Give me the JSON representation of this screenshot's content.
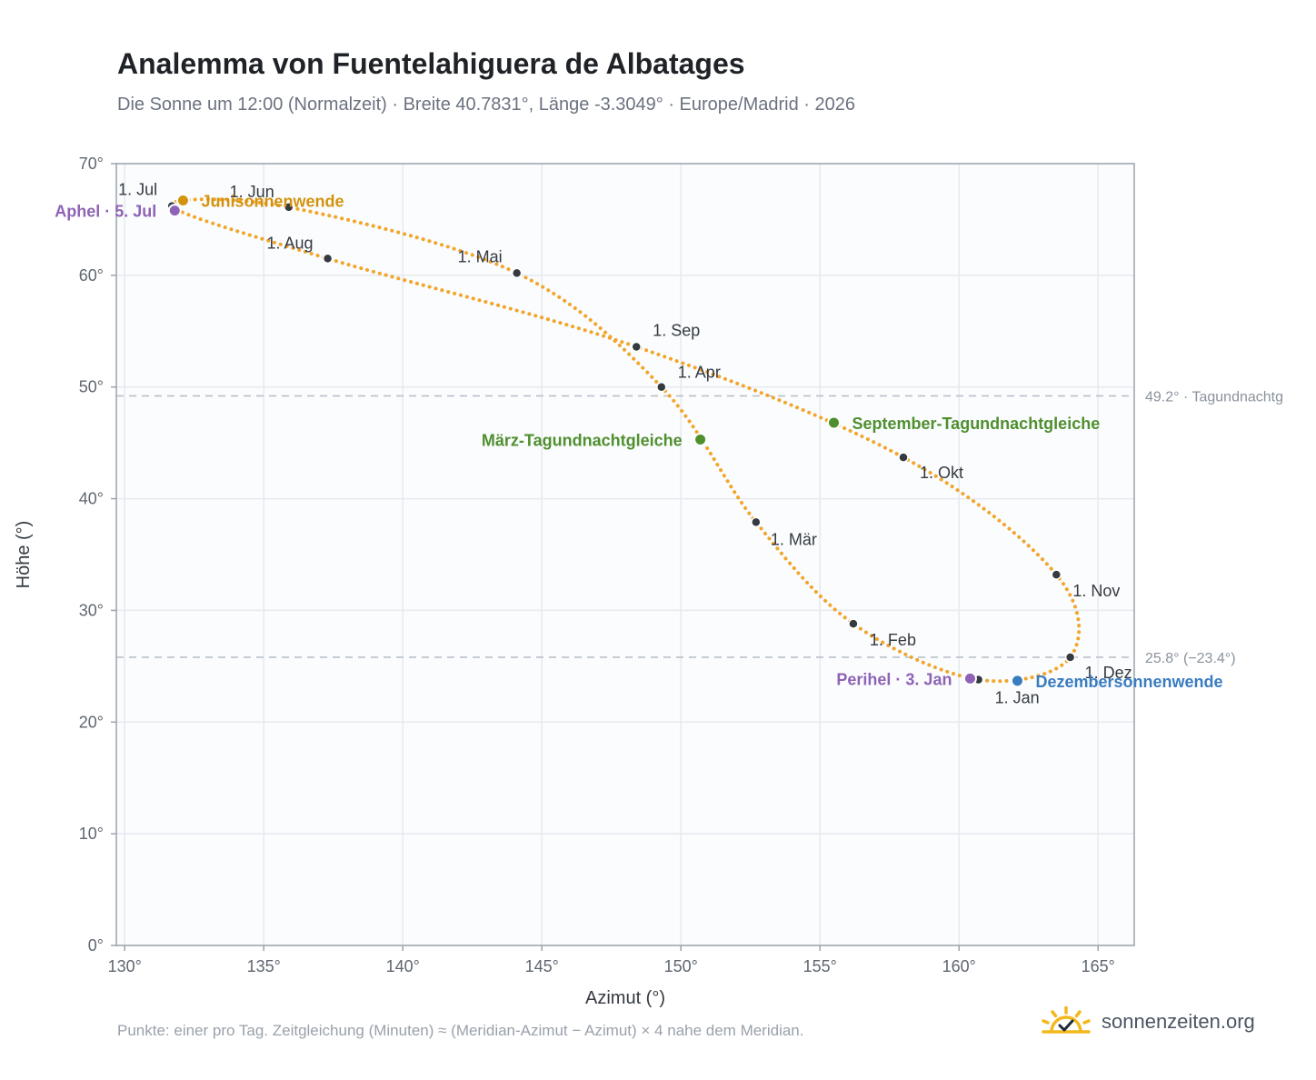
{
  "header": {
    "title": "Analemma von Fuentelahiguera de Albatages",
    "subtitle": "Die Sonne um 12:00 (Normalzeit) · Breite 40.7831°, Länge -3.3049° · Europe/Madrid · 2026"
  },
  "footer": {
    "note": "Punkte: einer pro Tag. Zeitgleichung (Minuten) ≈ (Meridian-Azimut − Azimut) × 4 nahe dem Meridian.",
    "brand": "sonnenzeiten.org",
    "brand_icon": "sun-check-icon"
  },
  "colors": {
    "curve": "#f2a52a",
    "month_dot": "#343a40",
    "equinox": "#4f8f2e",
    "june_solstice": "#d4920f",
    "december_solstice": "#3a7cc0",
    "apsis": "#8e63b5",
    "grid": "#e6e9ee",
    "plot_bg": "#fafcfe",
    "axis": "#9aa3ad"
  },
  "chart_data": {
    "type": "scatter",
    "xlabel": "Azimut (°)",
    "ylabel": "Höhe (°)",
    "xlim": [
      129.7,
      166.3
    ],
    "ylim": [
      0,
      70
    ],
    "xticks": [
      130,
      135,
      140,
      145,
      150,
      155,
      160,
      165
    ],
    "yticks": [
      0,
      10,
      20,
      30,
      40,
      50,
      60,
      70
    ],
    "xtick_labels": [
      "130°",
      "135°",
      "140°",
      "145°",
      "150°",
      "155°",
      "160°",
      "165°"
    ],
    "ytick_labels": [
      "0°",
      "10°",
      "20°",
      "30°",
      "40°",
      "50°",
      "60°",
      "70°"
    ],
    "grid": true,
    "reference_lines": [
      {
        "y": 49.2,
        "label": "49.2° · Tagundnachtg"
      },
      {
        "y": 25.8,
        "label": "25.8° (−23.4°)"
      }
    ],
    "month_points": [
      {
        "label": "1. Jan",
        "x": 160.7,
        "y": 23.8
      },
      {
        "label": "1. Feb",
        "x": 156.2,
        "y": 28.8
      },
      {
        "label": "1. Mär",
        "x": 152.7,
        "y": 37.9
      },
      {
        "label": "1. Apr",
        "x": 149.3,
        "y": 50.0
      },
      {
        "label": "1. Mai",
        "x": 144.1,
        "y": 60.2
      },
      {
        "label": "1. Jun",
        "x": 135.9,
        "y": 66.1
      },
      {
        "label": "1. Jul",
        "x": 131.7,
        "y": 66.2
      },
      {
        "label": "1. Aug",
        "x": 137.3,
        "y": 61.5
      },
      {
        "label": "1. Sep",
        "x": 148.4,
        "y": 53.6
      },
      {
        "label": "1. Okt",
        "x": 158.0,
        "y": 43.7
      },
      {
        "label": "1. Nov",
        "x": 163.5,
        "y": 33.2
      },
      {
        "label": "1. Dez",
        "x": 164.0,
        "y": 25.8
      }
    ],
    "events": [
      {
        "label": "Junisonnenwende",
        "x": 132.1,
        "y": 66.7,
        "kind": "june_solstice"
      },
      {
        "label": "Aphel · 5. Jul",
        "x": 131.8,
        "y": 65.8,
        "kind": "apsis"
      },
      {
        "label": "März-Tagundnachtgleiche",
        "x": 150.7,
        "y": 45.3,
        "kind": "equinox"
      },
      {
        "label": "September-Tagundnachtgleiche",
        "x": 155.5,
        "y": 46.8,
        "kind": "equinox"
      },
      {
        "label": "Perihel · 3. Jan",
        "x": 160.4,
        "y": 23.9,
        "kind": "apsis"
      },
      {
        "label": "Dezembersonnenwende",
        "x": 162.1,
        "y": 23.7,
        "kind": "december_solstice"
      }
    ]
  }
}
